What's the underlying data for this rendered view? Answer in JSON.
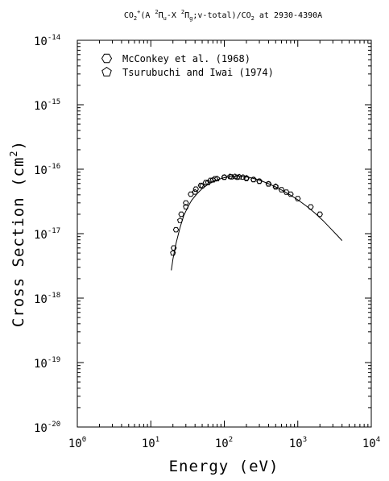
{
  "chart_data": {
    "type": "scatter",
    "title_parts": {
      "prefix": "CO",
      "sub1": "2",
      "plus": "+",
      "mid1": "(A ",
      "sup2": "2",
      "pi1": "Π",
      "sub_u": "u",
      "mid2": "-X ",
      "sup3": "2",
      "pi2": "Π",
      "sub_g": "g",
      "mid3": ";v-total)/CO",
      "sub2": "2",
      "suffix": " at 2930-4390A"
    },
    "xlabel": "Energy (eV)",
    "ylabel_parts": {
      "main": "Cross Section (cm",
      "sup": "2",
      "end": ")"
    },
    "xscale": "log",
    "yscale": "log",
    "xlim": [
      1,
      10000
    ],
    "ylim": [
      1e-20,
      1e-14
    ],
    "x_ticks": [
      {
        "base": "10",
        "exp": "0"
      },
      {
        "base": "10",
        "exp": "1"
      },
      {
        "base": "10",
        "exp": "2"
      },
      {
        "base": "10",
        "exp": "3"
      },
      {
        "base": "10",
        "exp": "4"
      }
    ],
    "y_ticks": [
      {
        "base": "10",
        "exp": "-20"
      },
      {
        "base": "10",
        "exp": "-19"
      },
      {
        "base": "10",
        "exp": "-18"
      },
      {
        "base": "10",
        "exp": "-17"
      },
      {
        "base": "10",
        "exp": "-16"
      },
      {
        "base": "10",
        "exp": "-15"
      },
      {
        "base": "10",
        "exp": "-14"
      }
    ],
    "legend_position": "top-left",
    "series": [
      {
        "name": "McConkey et al. (1968)",
        "marker": "hexagon",
        "x": [
          20.5,
          22,
          26,
          30,
          35,
          41,
          48,
          56,
          65,
          75,
          100,
          125,
          150,
          200,
          250,
          300,
          400,
          500,
          600,
          700,
          800,
          1000,
          1500,
          2000
        ],
        "y": [
          6e-18,
          1.15e-17,
          2e-17,
          3e-17,
          4.1e-17,
          4.9e-17,
          5.6e-17,
          6.2e-17,
          6.7e-17,
          7.1e-17,
          7.5e-17,
          7.6e-17,
          7.5e-17,
          7.2e-17,
          6.9e-17,
          6.5e-17,
          5.9e-17,
          5.3e-17,
          4.8e-17,
          4.4e-17,
          4.1e-17,
          3.5e-17,
          2.6e-17,
          2e-17
        ]
      },
      {
        "name": "Tsurubuchi and Iwai (1974)",
        "marker": "pentagon",
        "x": [
          20,
          25,
          30,
          40,
          50,
          60,
          70,
          80,
          100,
          120,
          140,
          160,
          180,
          200,
          250,
          300,
          400,
          500
        ],
        "y": [
          5e-18,
          1.6e-17,
          2.6e-17,
          4.4e-17,
          5.5e-17,
          6.2e-17,
          6.8e-17,
          7.1e-17,
          7.5e-17,
          7.7e-17,
          7.7e-17,
          7.6e-17,
          7.5e-17,
          7.3e-17,
          6.9e-17,
          6.5e-17,
          5.9e-17,
          5.4e-17
        ]
      },
      {
        "name": "",
        "marker": "line",
        "x": [
          19,
          20,
          22,
          25,
          28,
          32,
          36,
          42,
          50,
          60,
          70,
          85,
          100,
          120,
          150,
          180,
          220,
          270,
          330,
          400,
          500,
          650,
          800,
          1000,
          1300,
          1700,
          2200,
          2800,
          3500,
          4000
        ],
        "y": [
          2.7e-18,
          4e-18,
          7e-18,
          1.25e-17,
          1.9e-17,
          2.6e-17,
          3.3e-17,
          4.1e-17,
          5e-17,
          5.8e-17,
          6.4e-17,
          7e-17,
          7.4e-17,
          7.65e-17,
          7.75e-17,
          7.7e-17,
          7.45e-17,
          7e-17,
          6.5e-17,
          5.95e-17,
          5.3e-17,
          4.55e-17,
          3.95e-17,
          3.35e-17,
          2.7e-17,
          2.1e-17,
          1.6e-17,
          1.2e-17,
          9.2e-18,
          7.8e-18
        ]
      }
    ]
  }
}
